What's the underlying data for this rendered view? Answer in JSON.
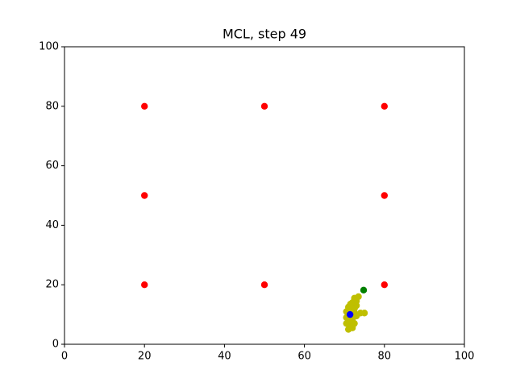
{
  "chart_data": {
    "type": "scatter",
    "title": "MCL, step 49",
    "xlim": [
      0,
      100
    ],
    "ylim": [
      0,
      100
    ],
    "xticks": [
      0,
      20,
      40,
      60,
      80,
      100
    ],
    "yticks": [
      0,
      20,
      40,
      60,
      80,
      100
    ],
    "series": [
      {
        "color": "#ff0000",
        "x": [
          20,
          50,
          80,
          20,
          80,
          20,
          50,
          80
        ],
        "values": [
          80,
          80,
          80,
          50,
          50,
          20,
          20,
          20
        ]
      },
      {
        "color": "#008000",
        "x": [
          74.8
        ],
        "values": [
          18.2
        ]
      },
      {
        "color": "#bfbf00",
        "x": [
          71,
          72,
          71.5,
          70.5,
          72.5,
          71,
          72,
          70.5,
          73,
          71.5,
          72.5,
          74,
          75,
          70.5,
          71.5,
          72.5,
          71,
          73,
          72,
          73,
          72.5,
          73.5,
          71.5,
          72
        ],
        "values": [
          5,
          5.5,
          6.5,
          7,
          7,
          8,
          8.5,
          9,
          9.5,
          10,
          10.5,
          10.5,
          10.5,
          11,
          11.5,
          12,
          12.5,
          13,
          14,
          14.5,
          15.5,
          16,
          13.5,
          6
        ]
      },
      {
        "color": "#0000ff",
        "x": [
          71.4
        ],
        "values": [
          10
        ]
      }
    ]
  }
}
